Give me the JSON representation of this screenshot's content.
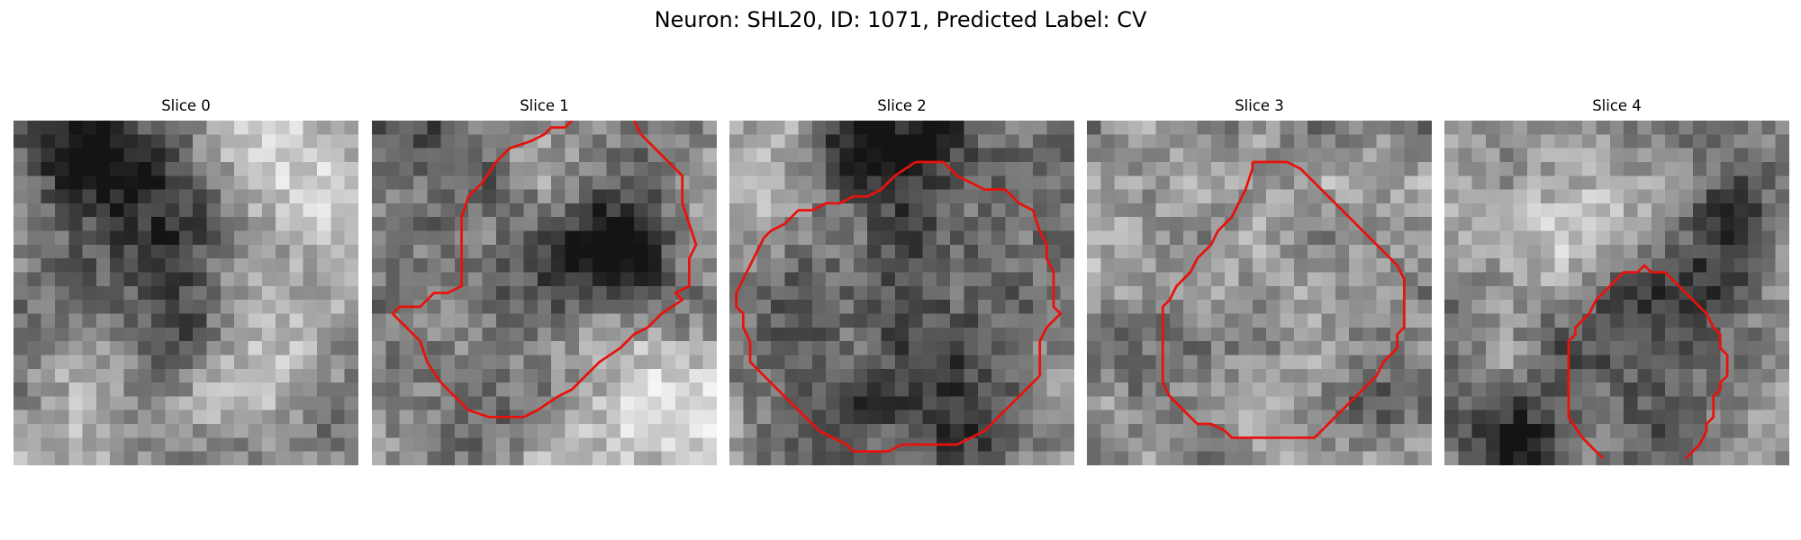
{
  "figure": {
    "title": "Neuron: SHL20, ID: 1071, Predicted Label: CV",
    "contour_color": "#e8120c",
    "panels": [
      {
        "title": "Slice 0",
        "seed": 11,
        "brightness": 150,
        "blobs": [
          {
            "cx": 3,
            "cy": 1,
            "r": 3.5,
            "d": 60
          },
          {
            "cx": 5,
            "cy": 2.5,
            "r": 2.5,
            "d": 60
          },
          {
            "cx": 8,
            "cy": 3,
            "r": 3,
            "d": 90
          },
          {
            "cx": 13,
            "cy": 6,
            "r": 3,
            "d": 45
          },
          {
            "cx": 10.5,
            "cy": 10.5,
            "r": 3,
            "d": 60
          },
          {
            "cx": 4,
            "cy": 12,
            "r": 2.5,
            "d": 40
          },
          {
            "cx": 12,
            "cy": 15.5,
            "r": 2.5,
            "d": 50
          },
          {
            "cx": 22,
            "cy": 7,
            "r": 2.5,
            "d": -30
          },
          {
            "cx": 21,
            "cy": 23,
            "r": 2.5,
            "d": 45
          },
          {
            "cx": 6,
            "cy": 20,
            "r": 2.5,
            "d": -20
          },
          {
            "cx": 20,
            "cy": 2,
            "r": 3.5,
            "d": -60
          },
          {
            "cx": 16,
            "cy": 20,
            "r": 3,
            "d": -40
          }
        ],
        "contours": []
      },
      {
        "title": "Slice 1",
        "seed": 23,
        "brightness": 135,
        "blobs": [
          {
            "cx": 3,
            "cy": 4,
            "r": 4,
            "d": 40
          },
          {
            "cx": 18.5,
            "cy": 9,
            "r": 2.2,
            "d": 120
          },
          {
            "cx": 16,
            "cy": 10,
            "r": 2.5,
            "d": 60
          },
          {
            "cx": 23,
            "cy": 14,
            "r": 2.5,
            "d": 30
          },
          {
            "cx": 22,
            "cy": 21,
            "r": 4,
            "d": -70
          },
          {
            "cx": 16,
            "cy": 24,
            "r": 3,
            "d": -50
          },
          {
            "cx": 5,
            "cy": 22,
            "r": 4,
            "d": 20
          },
          {
            "cx": 12,
            "cy": 1.5,
            "r": 3,
            "d": -30
          },
          {
            "cx": 11,
            "cy": 13,
            "r": 5,
            "d": 25
          }
        ],
        "contours": [
          [
            [
              14.5,
              0
            ],
            [
              14,
              0.5
            ],
            [
              13,
              0.5
            ],
            [
              12.5,
              1
            ],
            [
              11.5,
              1.5
            ],
            [
              10,
              2
            ],
            [
              9,
              3
            ],
            [
              8,
              4.5
            ],
            [
              7,
              5.5
            ],
            [
              6.5,
              7
            ],
            [
              6.5,
              12
            ],
            [
              5.5,
              12.5
            ],
            [
              4.5,
              12.5
            ],
            [
              3.5,
              13.5
            ],
            [
              2,
              13.5
            ],
            [
              1.5,
              14
            ],
            [
              2.5,
              15
            ],
            [
              3.5,
              16
            ],
            [
              4,
              17.5
            ],
            [
              5,
              19
            ],
            [
              6,
              20
            ],
            [
              7,
              21
            ],
            [
              8.5,
              21.5
            ],
            [
              11,
              21.5
            ],
            [
              12,
              21
            ],
            [
              13.5,
              20
            ],
            [
              14.5,
              19.5
            ],
            [
              15.5,
              18.5
            ],
            [
              16.5,
              17.5
            ],
            [
              18,
              16.5
            ],
            [
              19,
              15.5
            ],
            [
              20,
              15
            ],
            [
              21,
              14
            ],
            [
              22.5,
              13
            ],
            [
              22,
              12.5
            ],
            [
              23,
              12
            ],
            [
              23,
              10
            ],
            [
              23.5,
              9
            ],
            [
              23,
              7.5
            ],
            [
              22.5,
              6
            ],
            [
              22.5,
              4
            ],
            [
              21.5,
              3
            ],
            [
              20.5,
              2
            ],
            [
              19.5,
              1
            ],
            [
              19,
              0
            ]
          ]
        ]
      },
      {
        "title": "Slice 2",
        "seed": 37,
        "brightness": 150,
        "blobs": [
          {
            "cx": 11,
            "cy": 1.5,
            "r": 3,
            "d": 90
          },
          {
            "cx": 14,
            "cy": 2,
            "r": 2.5,
            "d": 50
          },
          {
            "cx": 12.5,
            "cy": 13,
            "r": 9.5,
            "d": 65
          },
          {
            "cx": 5,
            "cy": 20,
            "r": 3,
            "d": 40
          },
          {
            "cx": 17.5,
            "cy": 21.5,
            "r": 3.5,
            "d": 50
          },
          {
            "cx": 23,
            "cy": 3,
            "r": 3,
            "d": 20
          },
          {
            "cx": 1.5,
            "cy": 4,
            "r": 3,
            "d": -40
          },
          {
            "cx": 24,
            "cy": 18,
            "r": 2,
            "d": -50
          }
        ],
        "contours": [
          [
            [
              13.5,
              3
            ],
            [
              14.5,
              3
            ],
            [
              15.5,
              3
            ],
            [
              16.5,
              4
            ],
            [
              17.5,
              4.5
            ],
            [
              18.5,
              5
            ],
            [
              20,
              5
            ],
            [
              21,
              6
            ],
            [
              22,
              6.5
            ],
            [
              22.5,
              8
            ],
            [
              23,
              9
            ],
            [
              23,
              10
            ],
            [
              23.5,
              11
            ],
            [
              23.5,
              12
            ],
            [
              23.5,
              13.5
            ],
            [
              24,
              14
            ],
            [
              23,
              15
            ],
            [
              22.5,
              16
            ],
            [
              22.5,
              17
            ],
            [
              22.5,
              18.5
            ],
            [
              21.5,
              19.5
            ],
            [
              20.5,
              20.5
            ],
            [
              19.5,
              21.5
            ],
            [
              18.5,
              22.5
            ],
            [
              17.5,
              23
            ],
            [
              16.5,
              23.5
            ],
            [
              12.5,
              23.5
            ],
            [
              11.5,
              24
            ],
            [
              10.5,
              24
            ],
            [
              9,
              24
            ],
            [
              8.5,
              23.5
            ],
            [
              7.5,
              23
            ],
            [
              6.5,
              22.5
            ],
            [
              5.5,
              21.5
            ],
            [
              4.5,
              20.5
            ],
            [
              3.5,
              19.5
            ],
            [
              2.5,
              18.5
            ],
            [
              1.5,
              17.5
            ],
            [
              1.5,
              16
            ],
            [
              1,
              15
            ],
            [
              1,
              14
            ],
            [
              0.5,
              13.5
            ],
            [
              0.5,
              12.5
            ],
            [
              1,
              11.5
            ],
            [
              1.5,
              10.5
            ],
            [
              2,
              9.5
            ],
            [
              2.5,
              8.5
            ],
            [
              3,
              8
            ],
            [
              4,
              7.5
            ],
            [
              5,
              6.5
            ],
            [
              6,
              6.5
            ],
            [
              7,
              6
            ],
            [
              8,
              6
            ],
            [
              9,
              5.5
            ],
            [
              10,
              5.5
            ],
            [
              11,
              5
            ],
            [
              12,
              4
            ],
            [
              13.5,
              3
            ]
          ]
        ]
      },
      {
        "title": "Slice 3",
        "seed": 53,
        "brightness": 145,
        "blobs": [
          {
            "cx": 14,
            "cy": 14.5,
            "r": 6.5,
            "d": -10
          },
          {
            "cx": 4,
            "cy": 15.5,
            "r": 2.5,
            "d": 50
          },
          {
            "cx": 8,
            "cy": 23,
            "r": 2.5,
            "d": 30
          },
          {
            "cx": 21.5,
            "cy": 20,
            "r": 3,
            "d": 35
          },
          {
            "cx": 13,
            "cy": 1.5,
            "r": 3,
            "d": 20
          }
        ],
        "contours": [
          [
            [
              12,
              3
            ],
            [
              14.5,
              3
            ],
            [
              15.5,
              3.5
            ],
            [
              16.5,
              4.5
            ],
            [
              17.5,
              5.5
            ],
            [
              18.5,
              6.5
            ],
            [
              19.5,
              7.5
            ],
            [
              20.5,
              8.5
            ],
            [
              21.5,
              9.5
            ],
            [
              22.5,
              10.5
            ],
            [
              23,
              11.5
            ],
            [
              23,
              12.5
            ],
            [
              23,
              15
            ],
            [
              22.5,
              15.5
            ],
            [
              22.5,
              16.5
            ],
            [
              21.5,
              17.5
            ],
            [
              21,
              18.5
            ],
            [
              20,
              19.5
            ],
            [
              19,
              20.5
            ],
            [
              18,
              21.5
            ],
            [
              17,
              22.5
            ],
            [
              16.5,
              23
            ],
            [
              12,
              23
            ],
            [
              10.5,
              23
            ],
            [
              10,
              22.5
            ],
            [
              9,
              22
            ],
            [
              8,
              22
            ],
            [
              7,
              21
            ],
            [
              6,
              20
            ],
            [
              5.5,
              19
            ],
            [
              5.5,
              18
            ],
            [
              5.5,
              17
            ],
            [
              5.5,
              15
            ],
            [
              5.5,
              13.5
            ],
            [
              6,
              13
            ],
            [
              6.5,
              12
            ],
            [
              7.5,
              11
            ],
            [
              8,
              10
            ],
            [
              9,
              9
            ],
            [
              9.5,
              8
            ],
            [
              10.5,
              7
            ],
            [
              11,
              6
            ],
            [
              11.5,
              5
            ],
            [
              12,
              3.5
            ],
            [
              12,
              3
            ]
          ]
        ]
      },
      {
        "title": "Slice 4",
        "seed": 71,
        "brightness": 145,
        "blobs": [
          {
            "cx": 14,
            "cy": 15,
            "r": 4,
            "d": 55
          },
          {
            "cx": 19.5,
            "cy": 9.5,
            "r": 3,
            "d": 70
          },
          {
            "cx": 21,
            "cy": 6,
            "r": 2.5,
            "d": 60
          },
          {
            "cx": 4,
            "cy": 23,
            "r": 2.5,
            "d": 100
          },
          {
            "cx": 7,
            "cy": 24,
            "r": 2,
            "d": 70
          },
          {
            "cx": 14,
            "cy": 0.5,
            "r": 3,
            "d": 30
          },
          {
            "cx": 8,
            "cy": 7,
            "r": 3.5,
            "d": -40
          },
          {
            "cx": 16,
            "cy": 7.5,
            "r": 3,
            "d": -25
          },
          {
            "cx": 16,
            "cy": 22.5,
            "r": 2.5,
            "d": 50
          },
          {
            "cx": 8,
            "cy": 16,
            "r": 2.5,
            "d": 15
          }
        ],
        "contours": [
          [
            [
              11.5,
              24.5
            ],
            [
              10,
              23
            ],
            [
              9,
              21.5
            ],
            [
              9,
              20
            ],
            [
              9,
              17.5
            ],
            [
              9,
              16
            ],
            [
              9,
              16
            ],
            [
              9.5,
              15.5
            ],
            [
              9.5,
              15
            ],
            [
              10,
              14.5
            ],
            [
              10.5,
              14
            ],
            [
              11,
              13
            ],
            [
              11.5,
              12.5
            ],
            [
              12,
              12
            ],
            [
              12.5,
              11.5
            ],
            [
              13,
              11
            ],
            [
              13.5,
              11
            ],
            [
              14,
              11
            ],
            [
              14.5,
              10.5
            ],
            [
              15,
              11
            ],
            [
              16,
              11
            ],
            [
              17,
              12
            ],
            [
              18,
              13
            ],
            [
              19,
              14
            ],
            [
              19.5,
              15
            ],
            [
              20,
              15.5
            ],
            [
              20,
              16.5
            ],
            [
              20.5,
              17
            ],
            [
              20.5,
              18.5
            ],
            [
              20,
              19
            ],
            [
              20,
              19.5
            ],
            [
              19.5,
              20
            ],
            [
              19.5,
              21.5
            ],
            [
              19,
              22
            ],
            [
              19,
              22.5
            ],
            [
              18.5,
              23.5
            ],
            [
              18,
              24
            ],
            [
              17.5,
              24.5
            ]
          ]
        ]
      }
    ]
  }
}
